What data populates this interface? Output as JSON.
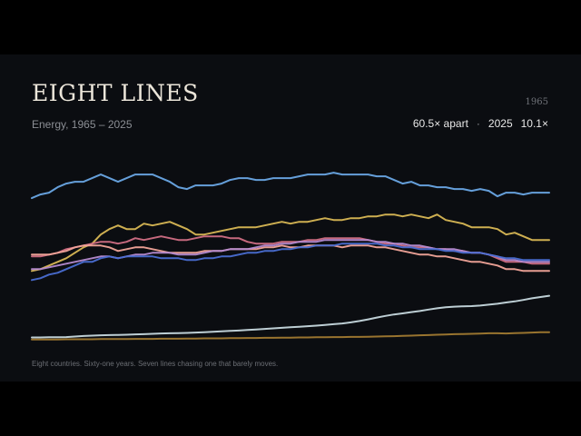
{
  "header": {
    "title": "EIGHT LINES",
    "subtitle": "Energy, 1965 – 2025",
    "corner_year": "1965"
  },
  "readout": {
    "ratio": "60.5× apart",
    "separator": "·",
    "year": "2025",
    "value": "10.1×"
  },
  "footnote": "Eight countries.  Sixty-one years.  Seven lines chasing one that barely moves.",
  "chart_data": {
    "type": "line",
    "x": [
      1965,
      1966,
      1967,
      1968,
      1969,
      1970,
      1971,
      1972,
      1973,
      1974,
      1975,
      1976,
      1977,
      1978,
      1979,
      1980,
      1981,
      1982,
      1983,
      1984,
      1985,
      1986,
      1987,
      1988,
      1989,
      1990,
      1991,
      1992,
      1993,
      1994,
      1995,
      1996,
      1997,
      1998,
      1999,
      2000,
      2001,
      2002,
      2003,
      2004,
      2005,
      2006,
      2007,
      2008,
      2009,
      2010,
      2011,
      2012,
      2013,
      2014,
      2015,
      2016,
      2017,
      2018,
      2019,
      2020,
      2021,
      2022,
      2023,
      2024,
      2025
    ],
    "xlim": [
      1965,
      2025
    ],
    "ylim": [
      0,
      105
    ],
    "grid": false,
    "legend": "none",
    "series": [
      {
        "color": "#6aa8e6",
        "values": [
          78,
          80,
          81,
          84,
          86,
          87,
          87,
          89,
          91,
          89,
          87,
          89,
          91,
          91,
          91,
          89,
          87,
          84,
          83,
          85,
          85,
          85,
          86,
          88,
          89,
          89,
          88,
          88,
          89,
          89,
          89,
          90,
          91,
          91,
          91,
          92,
          91,
          91,
          91,
          91,
          90,
          90,
          88,
          86,
          87,
          85,
          85,
          84,
          84,
          83,
          83,
          82,
          83,
          82,
          79,
          81,
          81,
          80,
          81,
          81,
          81
        ]
      },
      {
        "color": "#d9b855",
        "values": [
          38,
          39,
          41,
          43,
          45,
          48,
          51,
          53,
          58,
          61,
          63,
          61,
          61,
          64,
          63,
          64,
          65,
          63,
          61,
          58,
          58,
          59,
          60,
          61,
          62,
          62,
          62,
          63,
          64,
          65,
          64,
          65,
          65,
          66,
          67,
          66,
          66,
          67,
          67,
          68,
          68,
          69,
          69,
          68,
          69,
          68,
          67,
          69,
          66,
          65,
          64,
          62,
          62,
          62,
          61,
          58,
          59,
          57,
          55,
          55,
          55
        ]
      },
      {
        "color": "#d16f85",
        "values": [
          46,
          46,
          47,
          48,
          50,
          51,
          52,
          53,
          54,
          54,
          53,
          54,
          56,
          55,
          56,
          57,
          56,
          55,
          55,
          56,
          57,
          57,
          57,
          56,
          56,
          54,
          53,
          53,
          53,
          54,
          54,
          54,
          55,
          55,
          56,
          56,
          56,
          56,
          56,
          55,
          54,
          53,
          53,
          52,
          51,
          51,
          51,
          50,
          50,
          49,
          49,
          48,
          48,
          47,
          45,
          43,
          43,
          43,
          42,
          42,
          42
        ]
      },
      {
        "color": "#f2a59a",
        "values": [
          47,
          47,
          47,
          48,
          49,
          51,
          52,
          52,
          52,
          51,
          49,
          50,
          51,
          51,
          50,
          49,
          48,
          48,
          48,
          48,
          49,
          49,
          49,
          50,
          50,
          50,
          50,
          51,
          51,
          52,
          51,
          51,
          52,
          52,
          52,
          52,
          51,
          52,
          52,
          52,
          51,
          51,
          50,
          49,
          48,
          47,
          47,
          46,
          46,
          45,
          44,
          43,
          43,
          42,
          41,
          39,
          39,
          38,
          38,
          38,
          38
        ]
      },
      {
        "color": "#b58bd1",
        "values": [
          39,
          39,
          40,
          41,
          42,
          43,
          44,
          45,
          46,
          46,
          45,
          46,
          47,
          47,
          48,
          48,
          48,
          47,
          47,
          47,
          48,
          49,
          49,
          50,
          50,
          50,
          51,
          52,
          52,
          53,
          53,
          54,
          54,
          54,
          55,
          55,
          55,
          55,
          55,
          55,
          54,
          54,
          53,
          53,
          52,
          52,
          51,
          50,
          50,
          50,
          49,
          48,
          48,
          47,
          46,
          44,
          44,
          43,
          43,
          43,
          43
        ]
      },
      {
        "color": "#4a6ed3",
        "values": [
          33,
          34,
          36,
          37,
          39,
          41,
          43,
          43,
          45,
          46,
          45,
          46,
          46,
          46,
          46,
          45,
          45,
          45,
          44,
          44,
          45,
          45,
          46,
          46,
          47,
          48,
          48,
          49,
          49,
          50,
          50,
          51,
          51,
          52,
          52,
          52,
          53,
          53,
          53,
          53,
          53,
          52,
          52,
          51,
          51,
          50,
          50,
          50,
          49,
          49,
          48,
          48,
          48,
          47,
          46,
          45,
          45,
          44,
          44,
          44,
          44
        ]
      },
      {
        "color": "#c7d9df",
        "values": [
          1.5,
          1.5,
          1.6,
          1.6,
          1.7,
          2,
          2.3,
          2.5,
          2.7,
          2.8,
          2.9,
          3,
          3.2,
          3.3,
          3.5,
          3.7,
          3.8,
          3.9,
          4,
          4.2,
          4.4,
          4.6,
          4.9,
          5.1,
          5.3,
          5.6,
          5.9,
          6.2,
          6.5,
          6.8,
          7.1,
          7.4,
          7.7,
          8,
          8.4,
          8.8,
          9.2,
          9.8,
          10.5,
          11.4,
          12.4,
          13.3,
          14.1,
          14.7,
          15.4,
          16,
          16.8,
          17.5,
          18.1,
          18.4,
          18.6,
          18.7,
          19,
          19.5,
          20,
          20.7,
          21.3,
          22.1,
          23,
          23.7,
          24.4
        ]
      },
      {
        "color": "#a17a32",
        "values": [
          0.4,
          0.4,
          0.4,
          0.4,
          0.5,
          0.5,
          0.5,
          0.5,
          0.6,
          0.6,
          0.6,
          0.6,
          0.7,
          0.7,
          0.7,
          0.8,
          0.8,
          0.8,
          0.9,
          0.9,
          1,
          1,
          1,
          1.1,
          1.1,
          1.2,
          1.2,
          1.3,
          1.3,
          1.4,
          1.4,
          1.5,
          1.5,
          1.6,
          1.6,
          1.7,
          1.7,
          1.8,
          1.8,
          1.9,
          2,
          2.1,
          2.2,
          2.4,
          2.5,
          2.7,
          2.8,
          3,
          3.1,
          3.3,
          3.4,
          3.5,
          3.6,
          3.8,
          3.8,
          3.7,
          3.9,
          4,
          4.2,
          4.4,
          4.4
        ]
      }
    ]
  }
}
